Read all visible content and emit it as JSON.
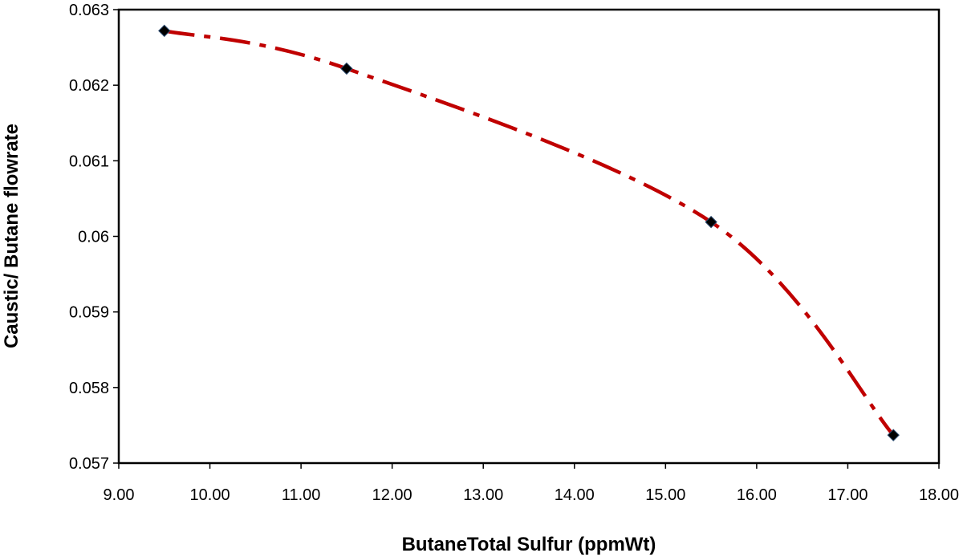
{
  "chart_data": {
    "type": "line",
    "title": "",
    "xlabel": "ButaneTotal Sulfur (ppmWt)",
    "ylabel": "Caustic/ Butane flowrate",
    "xlim": [
      9.0,
      18.0
    ],
    "ylim": [
      0.057,
      0.063
    ],
    "x_ticks": [
      "9.00",
      "10.00",
      "11.00",
      "12.00",
      "13.00",
      "14.00",
      "15.00",
      "16.00",
      "17.00",
      "18.00"
    ],
    "y_ticks": [
      "0.057",
      "0.058",
      "0.059",
      "0.06",
      "0.061",
      "0.062",
      "0.063"
    ],
    "grid": false,
    "legend": "none",
    "series": [
      {
        "marker": "diamond",
        "marker_color": "#000000",
        "line_color": "#c00000",
        "line_style": "dash-dot",
        "smooth": true,
        "points": [
          {
            "x": 9.5,
            "y": 0.06272
          },
          {
            "x": 11.5,
            "y": 0.06222
          },
          {
            "x": 15.5,
            "y": 0.06019
          },
          {
            "x": 17.5,
            "y": 0.05737
          }
        ]
      }
    ]
  }
}
